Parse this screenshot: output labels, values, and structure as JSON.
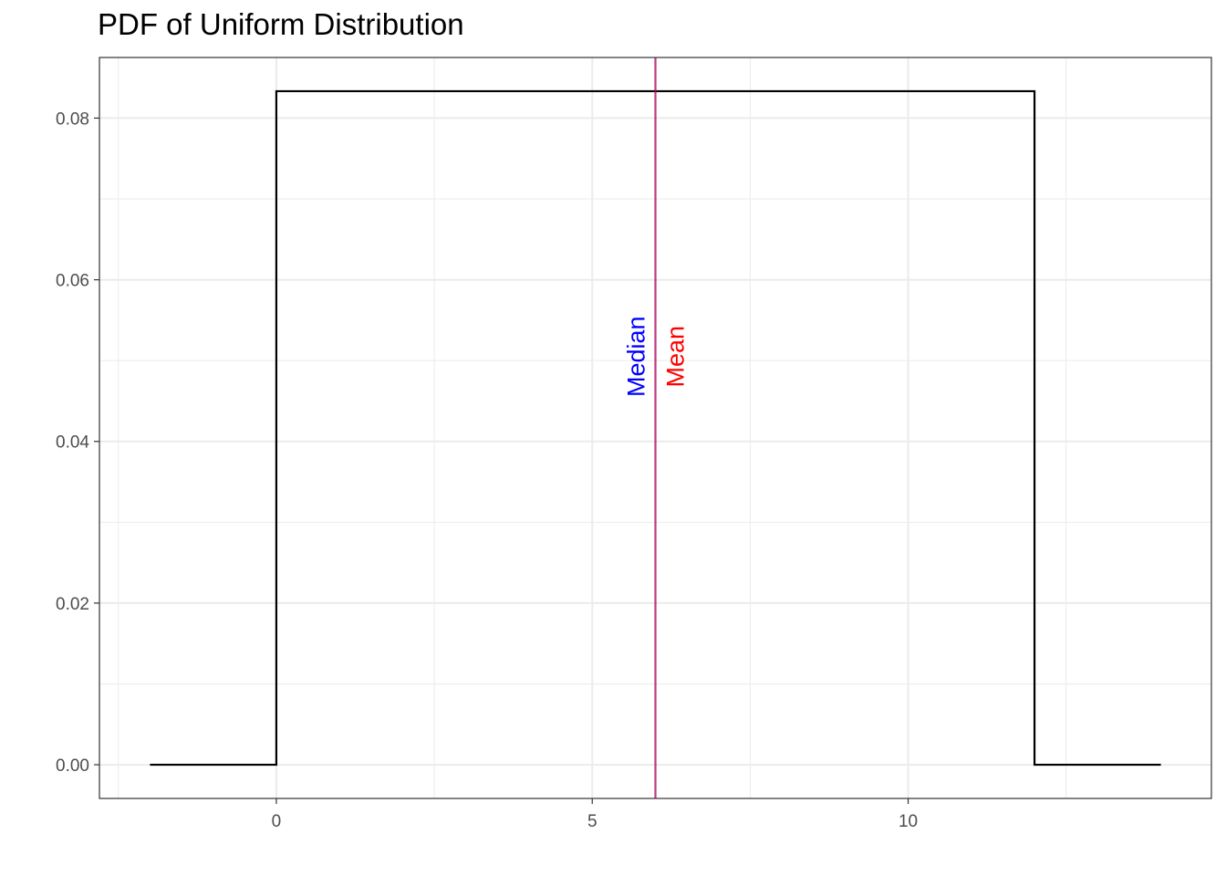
{
  "chart_data": {
    "type": "line",
    "title": "PDF of Uniform Distribution",
    "xlabel": "",
    "ylabel": "",
    "xlim": [
      -2.8,
      14.8
    ],
    "ylim": [
      -0.00417,
      0.0875
    ],
    "x_ticks": [
      0,
      5,
      10
    ],
    "x_tick_labels": [
      "0",
      "5",
      "10"
    ],
    "x_minor_ticks": [
      -2.5,
      2.5,
      7.5,
      12.5
    ],
    "y_ticks": [
      0.0,
      0.02,
      0.04,
      0.06,
      0.08
    ],
    "y_tick_labels": [
      "0.00",
      "0.02",
      "0.04",
      "0.06",
      "0.08"
    ],
    "y_minor_ticks": [
      0.01,
      0.03,
      0.05,
      0.07
    ],
    "grid": true,
    "series": [
      {
        "x": [
          -2,
          0,
          0,
          12,
          12,
          14
        ],
        "y": [
          0,
          0,
          0.08333,
          0.08333,
          0,
          0
        ],
        "color": "#000000"
      }
    ],
    "vlines": [
      {
        "x": 6,
        "color": "#0000ff"
      },
      {
        "x": 6,
        "color": "#ff0000"
      }
    ],
    "annotations": [
      {
        "text": "Median",
        "x": 6,
        "y": 0.0505,
        "color": "#0000ff",
        "rotation": -90,
        "side": "left"
      },
      {
        "text": "Mean",
        "x": 6,
        "y": 0.0505,
        "color": "#ff0000",
        "rotation": -90,
        "side": "right"
      }
    ]
  }
}
